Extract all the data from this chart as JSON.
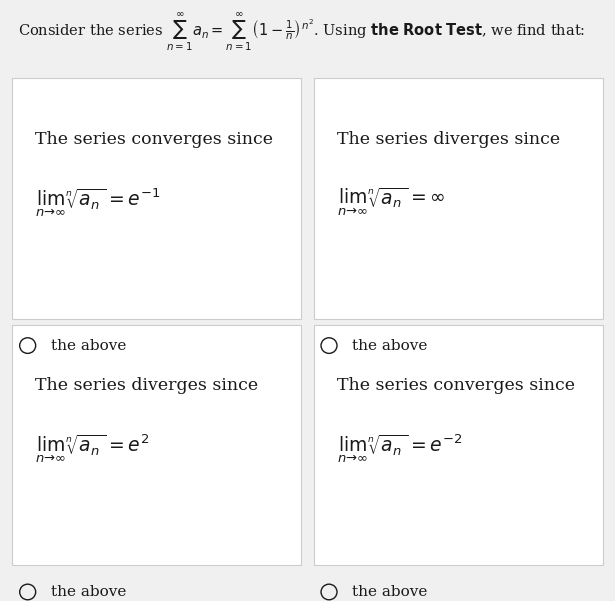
{
  "bg_color": "#f0f0f0",
  "card_bg": "#ffffff",
  "card_border": "#cccccc",
  "verdicts": [
    "The series converges since",
    "The series diverges since",
    "The series diverges since",
    "The series converges since"
  ],
  "formulas": [
    "$\\lim_{n \\to \\infty} \\sqrt[n]{a_n} = e^{-1}$",
    "$\\lim_{n \\to \\infty} \\sqrt[n]{a_n} = \\infty$",
    "$\\lim_{n \\to \\infty} \\sqrt[n]{a_n} = e^{2}$",
    "$\\lim_{n \\to \\infty} \\sqrt[n]{a_n} = e^{-2}$"
  ],
  "radio_label": "the above",
  "text_color": "#1a1a1a",
  "title_fontsize": 10.5,
  "verdict_fontsize": 12.5,
  "formula_fontsize": 13.5,
  "radio_fontsize": 11
}
